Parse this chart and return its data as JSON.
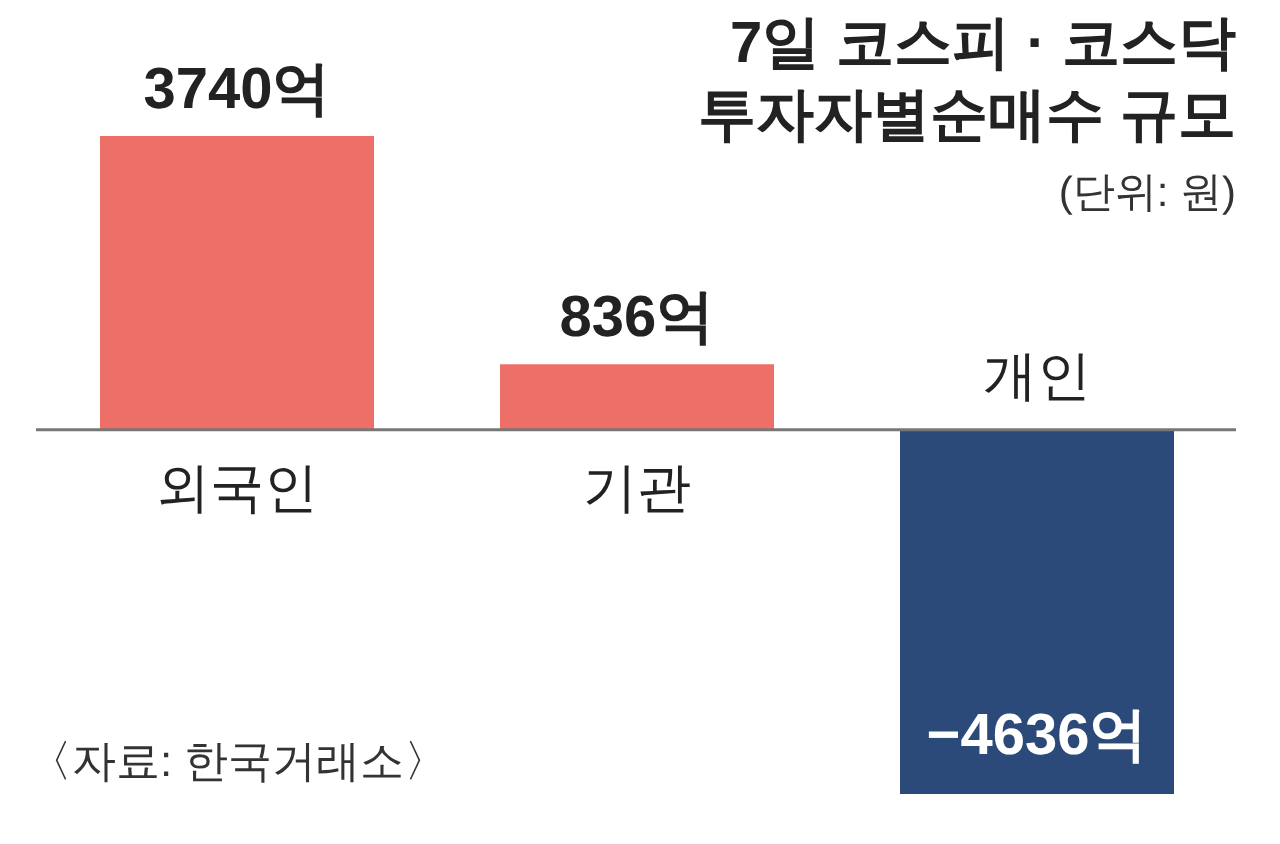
{
  "chart_data": {
    "type": "bar",
    "title": "7일 코스피 · 코스닥\n투자자별순매수 규모",
    "subtitle": "(단위: 원)",
    "annotations": [
      "〈자료: 한국거래소〉"
    ],
    "categories": [
      "외국인",
      "기관",
      "개인"
    ],
    "values": [
      3740,
      836,
      -4636
    ],
    "colors": [
      "#ee6e68",
      "#ee6e68",
      "#2c4a79"
    ],
    "value_labels": [
      "3740억",
      "836억",
      "−4636억"
    ]
  }
}
